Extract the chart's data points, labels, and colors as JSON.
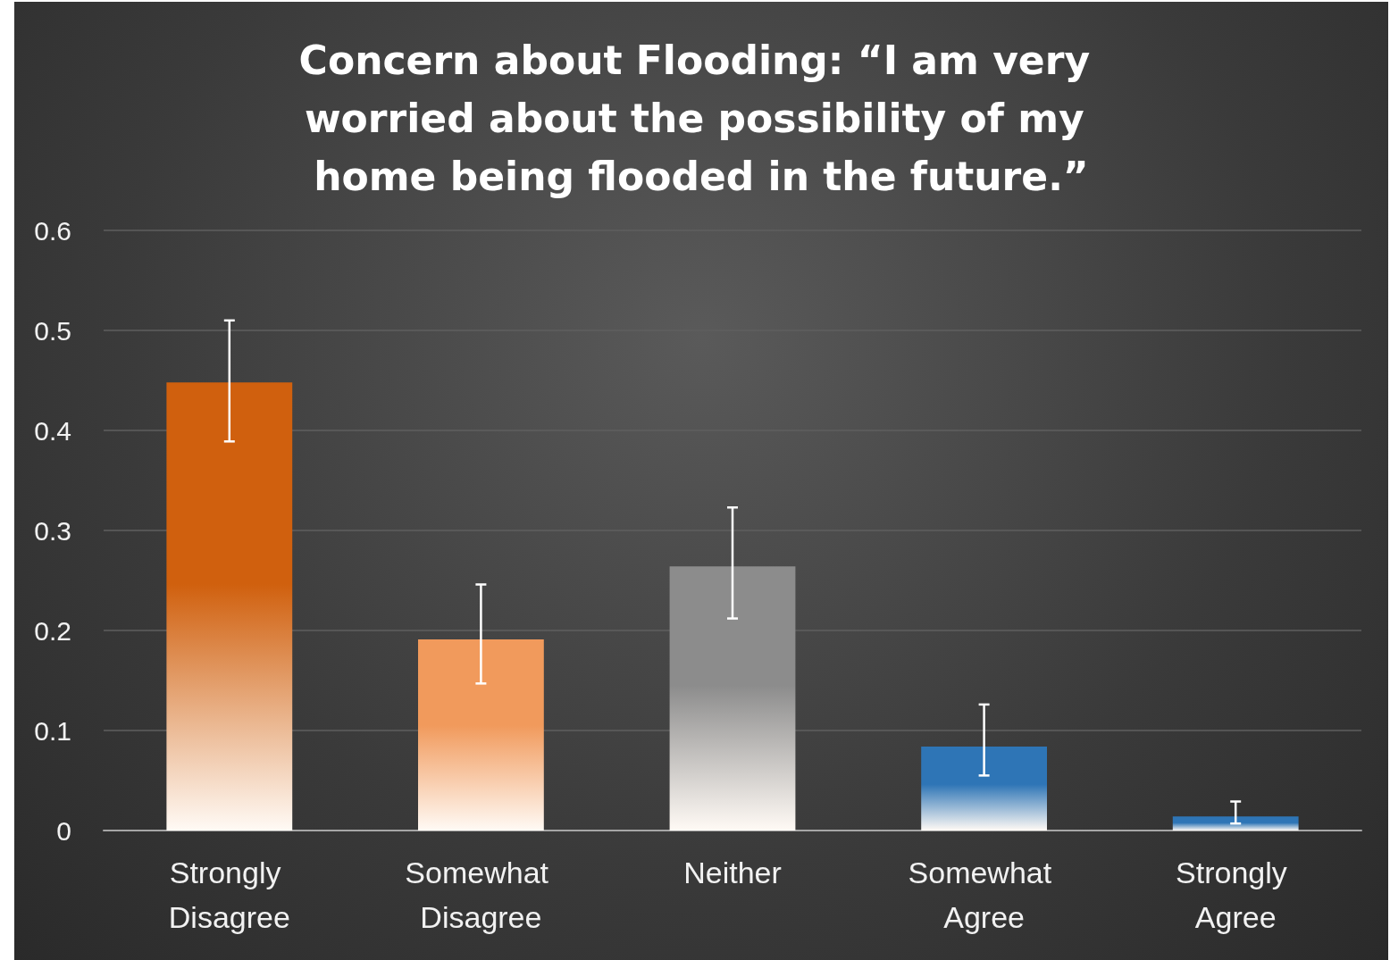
{
  "chart_data": {
    "type": "bar",
    "title": "Concern about Flooding: “I am very worried about the possibility of my home being flooded in the future.”",
    "categories": [
      "Strongly Disagree",
      "Somewhat Disagree",
      "Neither",
      "Somewhat Agree",
      "Strongly Agree"
    ],
    "values": [
      0.448,
      0.191,
      0.264,
      0.084,
      0.014
    ],
    "colors": [
      "#d0600e",
      "#f19a5c",
      "#8c8c8c",
      "#2e75b6",
      "#2e75b6"
    ],
    "errors": [
      [
        0.389,
        0.51
      ],
      [
        0.147,
        0.246
      ],
      [
        0.212,
        0.323
      ],
      [
        0.055,
        0.126
      ],
      [
        0.007,
        0.029
      ]
    ],
    "ylim": [
      0,
      0.6
    ],
    "yticks": [
      0,
      0.1,
      0.2,
      0.3,
      0.4,
      0.5,
      0.6
    ],
    "grid": "y"
  }
}
